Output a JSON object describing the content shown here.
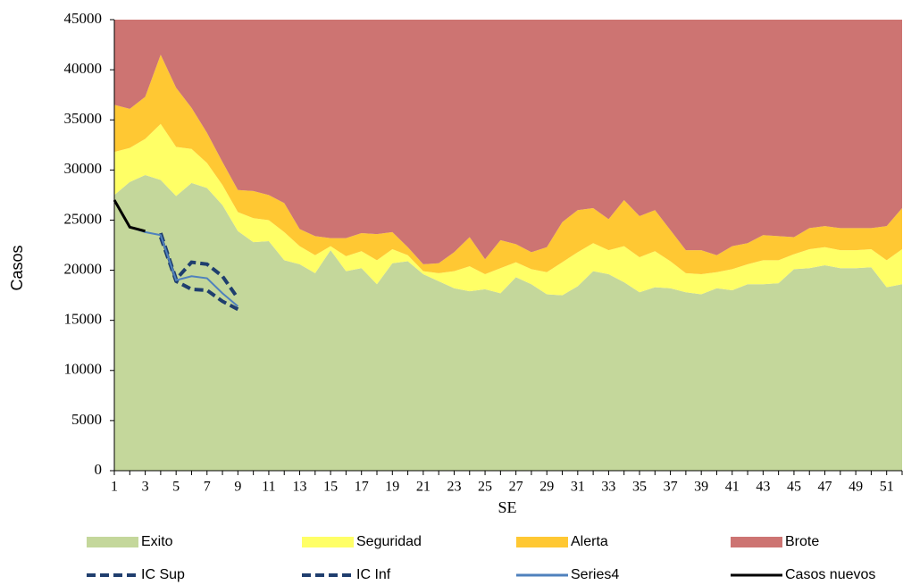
{
  "chart_data": {
    "type": "stacked-area",
    "x_label": "SE",
    "y_label": "Casos",
    "categories": [
      "1",
      null,
      "3",
      null,
      "5",
      null,
      "7",
      null,
      "9",
      null,
      "11",
      null,
      "13",
      null,
      "15",
      null,
      "17",
      null,
      "19",
      null,
      "21",
      null,
      "23",
      null,
      "25",
      null,
      "27",
      null,
      "29",
      null,
      "31",
      null,
      "33",
      null,
      "35",
      null,
      "37",
      null,
      "39",
      null,
      "41",
      null,
      "43",
      null,
      "45",
      null,
      "47",
      null,
      "49",
      null,
      "51",
      null
    ],
    "ylim": [
      0,
      45000
    ],
    "yticks": [
      0,
      5000,
      10000,
      15000,
      20000,
      25000,
      30000,
      35000,
      40000,
      45000
    ],
    "series": [
      {
        "name": "Exito",
        "color": "#c4d79b",
        "values": [
          27500,
          28800,
          29500,
          29000,
          27400,
          28700,
          28200,
          26500,
          23900,
          22800,
          22900,
          21000,
          20600,
          19700,
          22000,
          19900,
          20200,
          18600,
          20700,
          20900,
          19600,
          18900,
          18200,
          17900,
          18100,
          17700,
          19300,
          18600,
          17600,
          17500,
          18400,
          19900,
          19600,
          18800,
          17800,
          18300,
          18200,
          17800,
          17600,
          18200,
          18000,
          18600,
          18600,
          18700,
          20100,
          20200,
          20500,
          20200,
          20200,
          20300,
          18300,
          18600
        ]
      },
      {
        "name": "Seguridad",
        "color": "#ffff66",
        "values": [
          4300,
          3400,
          3600,
          5600,
          4900,
          3400,
          2500,
          2000,
          1900,
          2400,
          2100,
          2800,
          1800,
          1800,
          400,
          1500,
          1700,
          2400,
          1400,
          600,
          300,
          800,
          1700,
          2500,
          1500,
          2500,
          1500,
          1500,
          2200,
          3300,
          3400,
          2800,
          2400,
          3600,
          3500,
          3600,
          2700,
          1900,
          2000,
          1600,
          2100,
          2000,
          2400,
          2300,
          1500,
          1900,
          1800,
          1800,
          1800,
          1800,
          2700,
          3500
        ]
      },
      {
        "name": "Alerta",
        "color": "#ffc833",
        "values": [
          4700,
          3900,
          4200,
          6900,
          5900,
          4100,
          3000,
          2300,
          2200,
          2700,
          2500,
          2900,
          1700,
          1900,
          800,
          1800,
          1800,
          2600,
          1700,
          800,
          700,
          1000,
          1900,
          2900,
          1500,
          2800,
          1800,
          1700,
          2500,
          4000,
          4200,
          3500,
          3100,
          4600,
          4100,
          4100,
          3100,
          2300,
          2400,
          1700,
          2300,
          2100,
          2500,
          2400,
          1700,
          2100,
          2100,
          2200,
          2200,
          2100,
          3400,
          4100
        ]
      },
      {
        "name": "Brote",
        "color": "#cd7472",
        "values": [
          8500,
          8900,
          7700,
          3500,
          6800,
          8800,
          11300,
          14200,
          17000,
          17100,
          17500,
          18300,
          20900,
          21600,
          21800,
          21800,
          21300,
          21400,
          21200,
          22700,
          24400,
          24300,
          23200,
          21700,
          23900,
          22000,
          22400,
          23200,
          22700,
          20200,
          19000,
          18800,
          19900,
          18000,
          19600,
          19000,
          21000,
          23000,
          23000,
          23500,
          22600,
          22300,
          21500,
          21600,
          21700,
          20800,
          20600,
          20800,
          20800,
          20800,
          20600,
          18800
        ]
      }
    ],
    "lines": [
      {
        "name": "IC Sup",
        "color": "#1f3e6e",
        "dashed": true,
        "values": [
          null,
          null,
          null,
          23700,
          19100,
          20800,
          20600,
          19400,
          17200,
          null,
          null,
          null,
          null,
          null,
          null,
          null,
          null,
          null,
          null,
          null,
          null,
          null,
          null,
          null,
          null,
          null,
          null,
          null,
          null,
          null,
          null,
          null,
          null,
          null,
          null,
          null,
          null,
          null,
          null,
          null,
          null,
          null,
          null,
          null,
          null,
          null,
          null,
          null,
          null,
          null,
          null,
          null
        ]
      },
      {
        "name": "IC Inf",
        "color": "#1f3e6e",
        "dashed": true,
        "values": [
          null,
          null,
          null,
          23300,
          18900,
          18100,
          18000,
          16900,
          16100,
          null,
          null,
          null,
          null,
          null,
          null,
          null,
          null,
          null,
          null,
          null,
          null,
          null,
          null,
          null,
          null,
          null,
          null,
          null,
          null,
          null,
          null,
          null,
          null,
          null,
          null,
          null,
          null,
          null,
          null,
          null,
          null,
          null,
          null,
          null,
          null,
          null,
          null,
          null,
          null,
          null,
          null,
          null
        ]
      },
      {
        "name": "Series4",
        "color": "#4f81bd",
        "dashed": false,
        "values": [
          27000,
          24300,
          23800,
          23500,
          19000,
          19400,
          19200,
          17700,
          16400,
          null,
          null,
          null,
          null,
          null,
          null,
          null,
          null,
          null,
          null,
          null,
          null,
          null,
          null,
          null,
          null,
          null,
          null,
          null,
          null,
          null,
          null,
          null,
          null,
          null,
          null,
          null,
          null,
          null,
          null,
          null,
          null,
          null,
          null,
          null,
          null,
          null,
          null,
          null,
          null,
          null,
          null,
          null
        ]
      },
      {
        "name": "Casos nuevos",
        "color": "#000000",
        "dashed": false,
        "values": [
          27000,
          24300,
          23900,
          null,
          null,
          null,
          null,
          null,
          null,
          null,
          null,
          null,
          null,
          null,
          null,
          null,
          null,
          null,
          null,
          null,
          null,
          null,
          null,
          null,
          null,
          null,
          null,
          null,
          null,
          null,
          null,
          null,
          null,
          null,
          null,
          null,
          null,
          null,
          null,
          null,
          null,
          null,
          null,
          null,
          null,
          null,
          null,
          null,
          null,
          null,
          null,
          null
        ]
      }
    ]
  }
}
